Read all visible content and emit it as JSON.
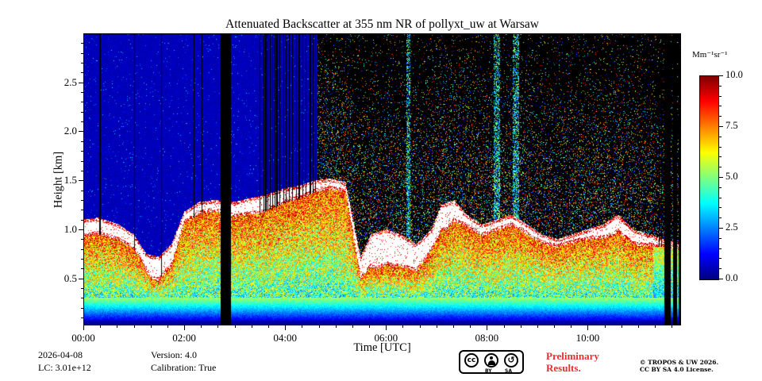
{
  "colors": {
    "background": "#ffffff",
    "text": "#000000",
    "preliminary": "#e53030"
  },
  "footer": {
    "date": "2026-04-08",
    "lc": "LC: 3.01e+12",
    "version": "Version: 4.0",
    "calibration": "Calibration: True",
    "preliminary_line1": "Preliminary",
    "preliminary_line2": "Results.",
    "copyright_line1": "© TROPOS & UW 2026.",
    "copyright_line2": "CC BY SA 4.0 License.",
    "cc_badge": {
      "cc": "cc",
      "by_label": "BY",
      "sa_label": "SA",
      "sa_glyph": "↺"
    }
  },
  "chart_data": {
    "type": "heatmap",
    "title": "Attenuated Backscatter at 355 nm NR of pollyxt_uw at Warsaw",
    "xlabel": "Time [UTC]",
    "ylabel": "Height [km]",
    "x_range_hours": [
      0,
      11.85
    ],
    "y_range_km": [
      0.02,
      3.0
    ],
    "x_ticks": [
      {
        "hour": 0,
        "label": "00:00"
      },
      {
        "hour": 2,
        "label": "02:00"
      },
      {
        "hour": 4,
        "label": "04:00"
      },
      {
        "hour": 6,
        "label": "06:00"
      },
      {
        "hour": 8,
        "label": "08:00"
      },
      {
        "hour": 10,
        "label": "10:00"
      }
    ],
    "x_minor_step_hours": 0.33333,
    "y_ticks": [
      {
        "km": 0.5,
        "label": "0.5"
      },
      {
        "km": 1.0,
        "label": "1.0"
      },
      {
        "km": 1.5,
        "label": "1.5"
      },
      {
        "km": 2.0,
        "label": "2.0"
      },
      {
        "km": 2.5,
        "label": "2.5"
      }
    ],
    "y_minor_step_km": 0.1,
    "colorbar": {
      "label": "Mm⁻¹sr⁻¹",
      "range": [
        0,
        10
      ],
      "ticks": [
        {
          "value": 0.0,
          "label": "0.0"
        },
        {
          "value": 2.5,
          "label": "2.5"
        },
        {
          "value": 5.0,
          "label": "5.0"
        },
        {
          "value": 7.5,
          "label": "7.5"
        },
        {
          "value": 10.0,
          "label": "10.0"
        }
      ],
      "minor_step": 0.5,
      "colormap": "jet",
      "over_color": "white"
    },
    "features": {
      "description": "Lidar quicklook: blue clear sky above boundary layer before ~04:40 UTC, black background with colored daylight noise speckle after; saturated white cloud/aerosol band at boundary-layer top; orange-red aerosol below; green-to-blue overlap gradient near ground; black vertical data gaps.",
      "noise_region_start_hour": 4.65,
      "data_gap_intervals_hours": [
        [
          2.73,
          2.93
        ],
        [
          11.52,
          11.65
        ],
        [
          11.7,
          11.77
        ],
        [
          11.8,
          11.83
        ]
      ],
      "thin_gap_lines_hours": [
        0.33,
        1.02,
        1.55,
        2.2,
        2.35,
        3.5,
        3.58,
        3.62,
        3.66,
        3.7,
        3.75,
        3.8,
        3.84,
        3.9,
        3.97,
        4.02,
        4.08,
        4.15,
        4.22,
        4.28,
        4.35,
        4.42,
        4.5,
        4.56,
        4.6,
        11.42,
        11.46
      ],
      "noise_boost_columns_hours": [
        [
          6.4,
          6.48
        ],
        [
          8.14,
          8.26
        ],
        [
          8.52,
          8.64
        ]
      ],
      "aerosol_layer_top_km": {
        "hours": [
          0,
          0.3,
          0.7,
          1.0,
          1.25,
          1.5,
          1.75,
          2.0,
          2.3,
          2.6,
          3.0,
          3.3,
          3.6,
          4.0,
          4.3,
          4.6,
          4.9,
          5.2,
          5.35,
          5.5,
          5.7,
          6.0,
          6.3,
          6.6,
          6.9,
          7.1,
          7.35,
          7.6,
          7.9,
          8.2,
          8.5,
          8.8,
          9.1,
          9.4,
          9.7,
          10.0,
          10.3,
          10.6,
          10.9,
          11.2,
          11.5,
          11.85
        ],
        "km": [
          1.1,
          1.12,
          1.05,
          0.95,
          0.75,
          0.72,
          0.85,
          1.18,
          1.28,
          1.3,
          1.28,
          1.32,
          1.35,
          1.42,
          1.45,
          1.5,
          1.52,
          1.48,
          1.1,
          0.72,
          0.95,
          1.0,
          0.95,
          0.85,
          1.0,
          1.25,
          1.3,
          1.15,
          1.05,
          1.1,
          1.15,
          1.05,
          0.95,
          0.9,
          0.95,
          1.0,
          1.05,
          1.15,
          1.0,
          0.95,
          0.9,
          0.85
        ]
      },
      "saturated_band_thickness_km": {
        "hours": [
          0,
          1.2,
          1.35,
          1.75,
          2.0,
          2.6,
          3.0,
          3.5,
          4.0,
          4.6,
          5.2,
          5.45,
          5.8,
          6.2,
          6.6,
          6.9,
          7.2,
          7.6,
          8.0,
          9.0,
          9.5,
          10.0,
          10.5,
          11.0,
          11.5,
          11.85
        ],
        "km": [
          0.18,
          0.15,
          0.25,
          0.22,
          0.12,
          0.12,
          0.15,
          0.18,
          0.15,
          0.12,
          0.1,
          0.2,
          0.38,
          0.35,
          0.28,
          0.22,
          0.28,
          0.12,
          0.12,
          0.1,
          0.08,
          0.1,
          0.18,
          0.15,
          0.08,
          0.06
        ]
      }
    }
  }
}
